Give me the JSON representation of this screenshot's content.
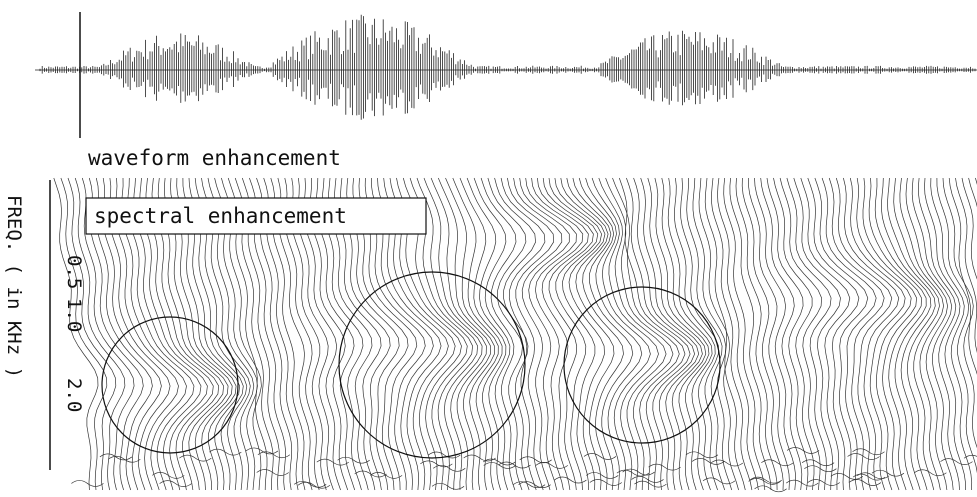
{
  "waveform_label": "waveform enhancement",
  "spectral_label": "spectral enhancement",
  "axis": {
    "title": "FREQ. ( in KHz )",
    "ticks": [
      "0.5",
      "1.0",
      "2.0"
    ]
  }
}
